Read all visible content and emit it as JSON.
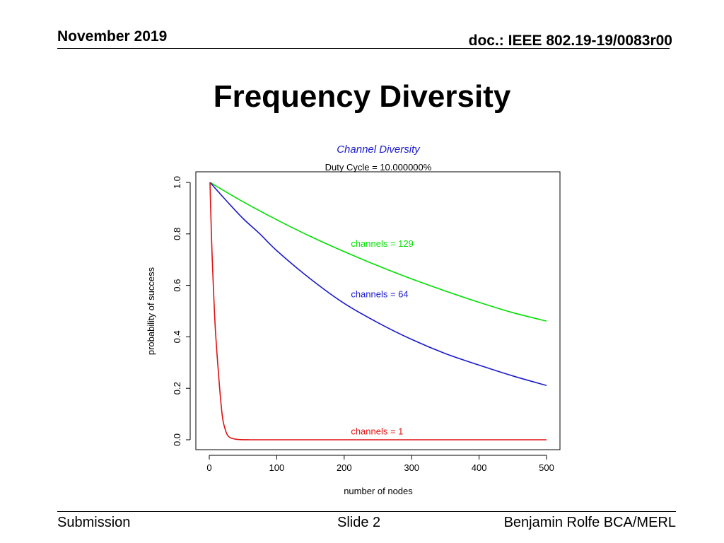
{
  "header": {
    "date": "November 2019",
    "doc": "doc.: IEEE 802.19-19/0083r00"
  },
  "slide_title": "Frequency Diversity",
  "footer": {
    "left": "Submission",
    "center": "Slide 2",
    "right": "Benjamin Rolfe BCA/MERL"
  },
  "chart_data": {
    "type": "line",
    "title": "Channel Diversity",
    "subtitle": "Duty Cycle = 10.000000%",
    "xlabel": "number of nodes",
    "ylabel": "probability of success",
    "xlim": [
      0,
      500
    ],
    "ylim": [
      0,
      1
    ],
    "x_ticks": [
      "0",
      "100",
      "200",
      "300",
      "400",
      "500"
    ],
    "y_ticks": [
      "0.0",
      "0.2",
      "0.4",
      "0.6",
      "0.8",
      "1.0"
    ],
    "grid": false,
    "series": [
      {
        "name": "channels = 129",
        "color": "#00e000",
        "x": [
          1,
          50,
          100,
          150,
          200,
          250,
          300,
          350,
          400,
          450,
          500
        ],
        "y": [
          1.0,
          0.925,
          0.855,
          0.79,
          0.731,
          0.676,
          0.625,
          0.578,
          0.534,
          0.494,
          0.461
        ]
      },
      {
        "name": "channels = 64",
        "color": "#1a1acc",
        "x": [
          1,
          25,
          50,
          75,
          100,
          150,
          200,
          250,
          300,
          350,
          400,
          450,
          500
        ],
        "y": [
          1.0,
          0.93,
          0.86,
          0.8,
          0.735,
          0.625,
          0.53,
          0.455,
          0.39,
          0.335,
          0.29,
          0.248,
          0.211
        ]
      },
      {
        "name": "channels =  1",
        "color": "#e01010",
        "x": [
          1,
          3,
          5,
          8,
          10,
          13,
          16,
          20,
          25,
          30,
          40,
          60,
          100,
          200,
          300,
          400,
          500
        ],
        "y": [
          1.0,
          0.81,
          0.66,
          0.48,
          0.39,
          0.28,
          0.18,
          0.08,
          0.03,
          0.01,
          0.002,
          0.0,
          0.0,
          0.0,
          0.0,
          0.0,
          0.0
        ]
      }
    ],
    "annotations": [
      {
        "text": "channels = 129",
        "x": 210,
        "y": 0.75,
        "color": "#00e000"
      },
      {
        "text": "channels = 64",
        "x": 210,
        "y": 0.553,
        "color": "#1a1acc"
      },
      {
        "text": "channels =  1",
        "x": 210,
        "y": 0.02,
        "color": "#e01010"
      }
    ]
  }
}
